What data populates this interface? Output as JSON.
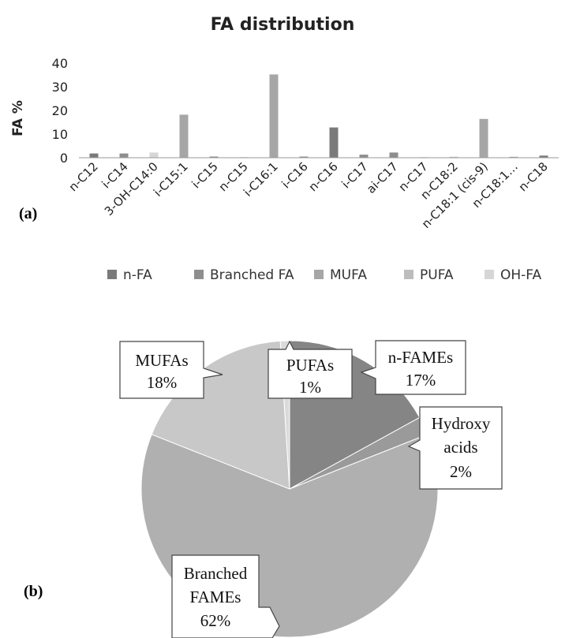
{
  "chart_data": [
    {
      "type": "bar",
      "title": "FA distribution",
      "ylabel": "FA %",
      "xlabel": "",
      "ylim": [
        0,
        40
      ],
      "yticks": [
        0,
        10,
        20,
        30,
        40
      ],
      "categories": [
        "n-C12",
        "i-C14",
        "3-OH-C14:0",
        "i-C15:1",
        "i-C15",
        "n-C15",
        "i-C16:1",
        "i-C16",
        "n-C16",
        "i-C17",
        "ai-C17",
        "n-C17",
        "n-C18:2",
        "n-C18:1 (cis-9)",
        "n-C18:1…",
        "n-C18"
      ],
      "values": [
        1.8,
        1.8,
        2.2,
        18.2,
        0.5,
        0.2,
        35.2,
        0.5,
        12.8,
        1.3,
        2.2,
        0.2,
        0.4,
        16.4,
        0.4,
        0.9
      ],
      "groups": [
        "n-FA",
        "Branched FA",
        "OH-FA",
        "MUFA",
        "Branched FA",
        "n-FA",
        "MUFA",
        "Branched FA",
        "n-FA",
        "Branched FA",
        "Branched FA",
        "n-FA",
        "PUFA",
        "MUFA",
        "MUFA",
        "n-FA"
      ],
      "panel_label": "(a)"
    },
    {
      "type": "pie",
      "panel_label": "(b)",
      "slices": [
        {
          "label": "n-FAMEs",
          "value": 17,
          "text": "17%"
        },
        {
          "label": "Hydroxy acids",
          "value": 2,
          "text": "2%"
        },
        {
          "label": "Branched FAMEs",
          "value": 62,
          "text": "62%"
        },
        {
          "label": "MUFAs",
          "value": 18,
          "text": "18%"
        },
        {
          "label": "PUFAs",
          "value": 1,
          "text": "1%"
        }
      ]
    }
  ],
  "legend": {
    "placement": "top",
    "entries": [
      {
        "name": "n-FA",
        "color": "#7a7a7a"
      },
      {
        "name": "Branched FA",
        "color": "#8e8e8e"
      },
      {
        "name": "MUFA",
        "color": "#a6a6a6"
      },
      {
        "name": "PUFA",
        "color": "#bdbdbd"
      },
      {
        "name": "OH-FA",
        "color": "#d6d6d6"
      }
    ]
  },
  "colors": {
    "n-FA": "#7a7a7a",
    "Branched FA": "#8e8e8e",
    "MUFA": "#a6a6a6",
    "PUFA": "#bdbdbd",
    "OH-FA": "#d6d6d6",
    "pie_nfame": "#858585",
    "pie_hydroxy": "#9a9a9a",
    "pie_branched": "#b0b0b0",
    "pie_mufa": "#c8c8c8",
    "pie_pufa": "#dadada"
  }
}
